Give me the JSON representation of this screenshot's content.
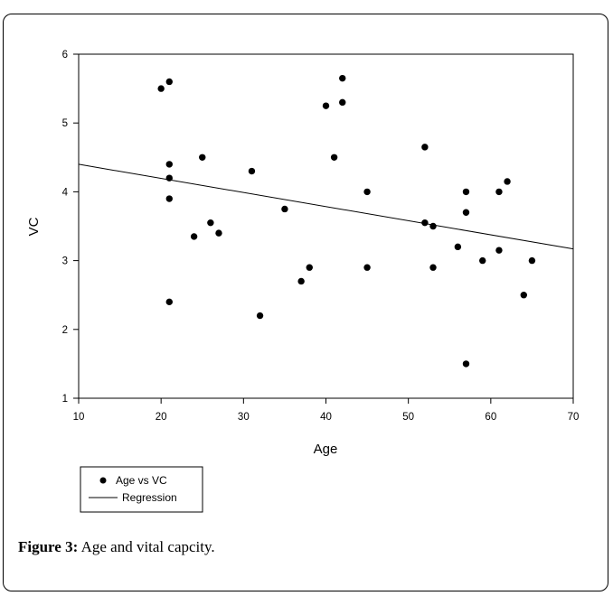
{
  "chart_data": {
    "type": "scatter",
    "xlabel": "Age",
    "ylabel": "VC",
    "xlim": [
      10,
      70
    ],
    "ylim": [
      1,
      6
    ],
    "xticks": [
      10,
      20,
      30,
      40,
      50,
      60,
      70
    ],
    "yticks": [
      1,
      2,
      3,
      4,
      5,
      6
    ],
    "grid": false,
    "legend_position": "bottom-left",
    "series": [
      {
        "name": "Age vs VC",
        "kind": "scatter",
        "color": "#000000",
        "points": [
          [
            20,
            5.5
          ],
          [
            21,
            5.6
          ],
          [
            21,
            4.4
          ],
          [
            21,
            4.2
          ],
          [
            21,
            3.9
          ],
          [
            21,
            2.4
          ],
          [
            24,
            3.35
          ],
          [
            25,
            4.5
          ],
          [
            26,
            3.55
          ],
          [
            27,
            3.4
          ],
          [
            31,
            4.3
          ],
          [
            32,
            2.2
          ],
          [
            35,
            3.75
          ],
          [
            37,
            2.7
          ],
          [
            38,
            2.9
          ],
          [
            40,
            5.25
          ],
          [
            41,
            4.5
          ],
          [
            42,
            5.65
          ],
          [
            42,
            5.3
          ],
          [
            45,
            4.0
          ],
          [
            45,
            2.9
          ],
          [
            52,
            4.65
          ],
          [
            52,
            3.55
          ],
          [
            53,
            3.5
          ],
          [
            53,
            2.9
          ],
          [
            56,
            3.2
          ],
          [
            57,
            4.0
          ],
          [
            57,
            3.7
          ],
          [
            57,
            1.5
          ],
          [
            59,
            3.0
          ],
          [
            61,
            4.0
          ],
          [
            61,
            3.15
          ],
          [
            62,
            4.15
          ],
          [
            64,
            2.5
          ],
          [
            65,
            3.0
          ]
        ]
      },
      {
        "name": "Regression",
        "kind": "line",
        "color": "#000000",
        "points": [
          [
            10,
            4.4
          ],
          [
            70,
            3.17
          ]
        ]
      }
    ]
  },
  "caption": {
    "label": "Figure 3:",
    "text": " Age and vital capcity."
  }
}
